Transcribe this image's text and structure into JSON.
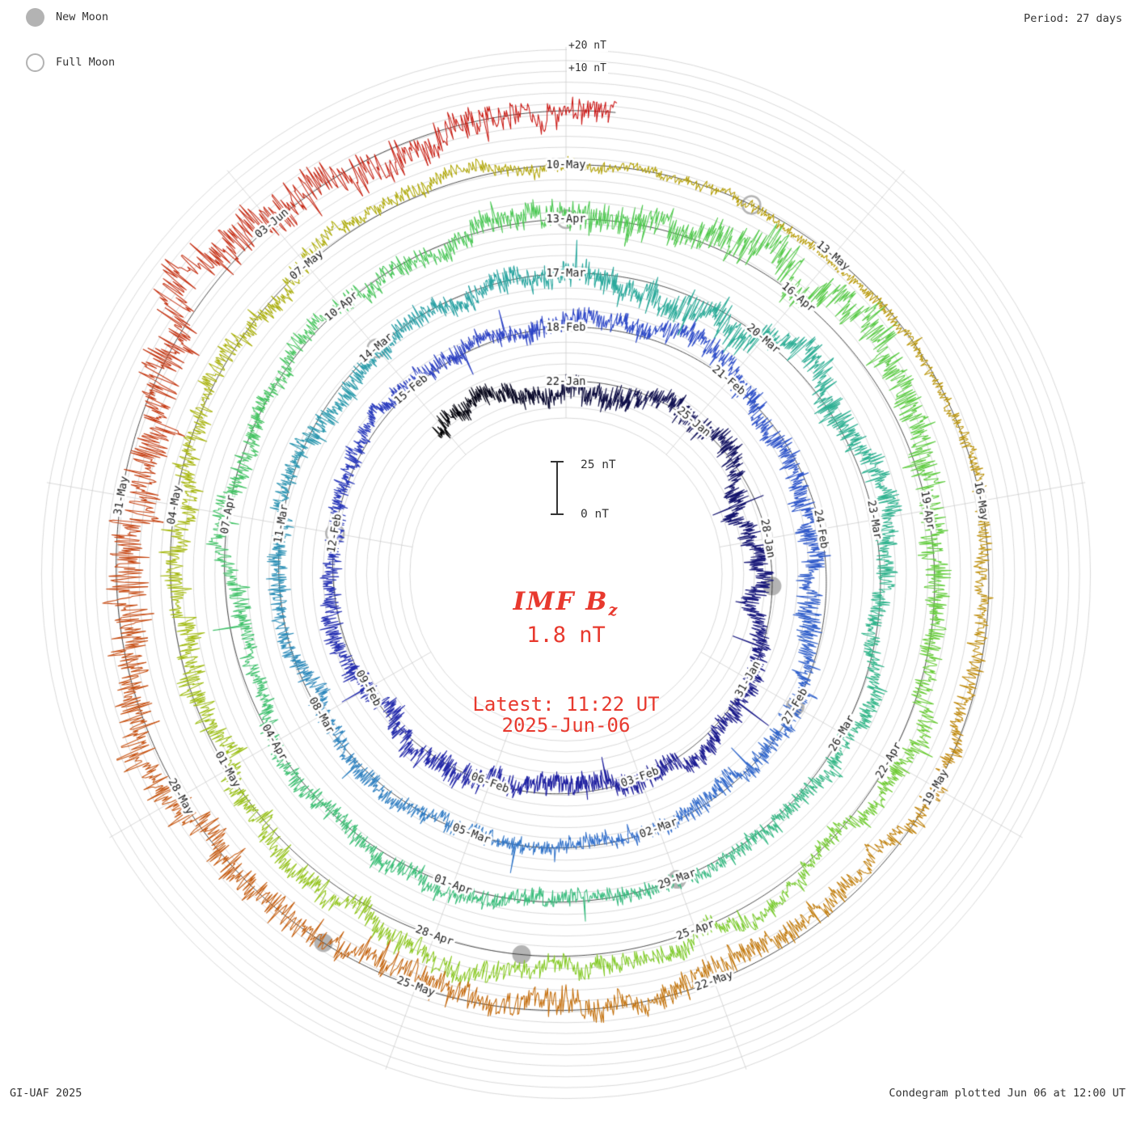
{
  "header": {
    "legend": {
      "new_moon": "New Moon",
      "full_moon": "Full Moon"
    },
    "period_label": "Period: 27 days"
  },
  "axis": {
    "plus20": "+20 nT",
    "plus10": "+10 nT"
  },
  "scalebar": {
    "top": "25 nT",
    "bottom": "0 nT"
  },
  "center": {
    "title_main": "IMF B",
    "title_sub": "z",
    "value": "1.8 nT",
    "latest_line1": "Latest: 11:22 UT",
    "latest_line2": "2025-Jun-06"
  },
  "footer": {
    "left": "GI-UAF 2025",
    "right": "Condegram plotted Jun 06 at 12:00 UT"
  },
  "colors": {
    "text": "#333333",
    "accent_red": "#e8392e",
    "moon": "#b3b3b3",
    "grid": "#cccccc",
    "baseline": "#1a1a1a"
  },
  "chart_data": {
    "type": "line",
    "style": "condegram-polar-spiral",
    "title": "IMF Bz",
    "unit": "nT",
    "period_days": 27,
    "latest_value_nT": 1.8,
    "latest_time": "11:22 UT",
    "latest_date": "2025-Jun-06",
    "plotted": "Jun 06 at 12:00 UT",
    "seed": 87654321,
    "day_range": [
      -3.2,
      135.47
    ],
    "rotation_start_dates": [
      "22-Jan",
      "18-Feb",
      "17-Mar",
      "13-Apr",
      "10-May"
    ],
    "label_step_days": 3,
    "scale": {
      "nT_per_ring_gap": 25,
      "grid_step_nT": 5,
      "scalebar_nT": 25,
      "top_axis_labels": [
        "+20 nT",
        "+10 nT"
      ]
    },
    "ring_labels": [
      {
        "d": 0,
        "label": "22-Jan"
      },
      {
        "d": 3,
        "label": "25-Jan"
      },
      {
        "d": 6,
        "label": "28-Jan"
      },
      {
        "d": 9,
        "label": "31-Jan"
      },
      {
        "d": 12,
        "label": "03-Feb"
      },
      {
        "d": 15,
        "label": "06-Feb"
      },
      {
        "d": 18,
        "label": "09-Feb"
      },
      {
        "d": 21,
        "label": "12-Feb"
      },
      {
        "d": 24,
        "label": "15-Feb"
      },
      {
        "d": 27,
        "label": "18-Feb"
      },
      {
        "d": 30,
        "label": "21-Feb"
      },
      {
        "d": 33,
        "label": "24-Feb"
      },
      {
        "d": 36,
        "label": "27-Feb"
      },
      {
        "d": 39,
        "label": "02-Mar"
      },
      {
        "d": 42,
        "label": "05-Mar"
      },
      {
        "d": 45,
        "label": "08-Mar"
      },
      {
        "d": 48,
        "label": "11-Mar"
      },
      {
        "d": 51,
        "label": "14-Mar"
      },
      {
        "d": 54,
        "label": "17-Mar"
      },
      {
        "d": 57,
        "label": "20-Mar"
      },
      {
        "d": 60,
        "label": "23-Mar"
      },
      {
        "d": 63,
        "label": "26-Mar"
      },
      {
        "d": 66,
        "label": "29-Mar"
      },
      {
        "d": 69,
        "label": "01-Apr"
      },
      {
        "d": 72,
        "label": "04-Apr"
      },
      {
        "d": 75,
        "label": "07-Apr"
      },
      {
        "d": 78,
        "label": "10-Apr"
      },
      {
        "d": 81,
        "label": "13-Apr"
      },
      {
        "d": 84,
        "label": "16-Apr"
      },
      {
        "d": 87,
        "label": "19-Apr"
      },
      {
        "d": 90,
        "label": "22-Apr"
      },
      {
        "d": 93,
        "label": "25-Apr"
      },
      {
        "d": 96,
        "label": "28-Apr"
      },
      {
        "d": 99,
        "label": "01-May"
      },
      {
        "d": 102,
        "label": "04-May"
      },
      {
        "d": 105,
        "label": "07-May"
      },
      {
        "d": 108,
        "label": "10-May"
      },
      {
        "d": 111,
        "label": "13-May"
      },
      {
        "d": 114,
        "label": "16-May"
      },
      {
        "d": 117,
        "label": "19-May"
      },
      {
        "d": 120,
        "label": "22-May"
      },
      {
        "d": 123,
        "label": "25-May"
      },
      {
        "d": 126,
        "label": "28-May"
      },
      {
        "d": 129,
        "label": "31-May"
      },
      {
        "d": 132,
        "label": "03-Jun"
      }
    ],
    "moons": {
      "new": [
        {
          "d": 7,
          "date": "29-Jan"
        },
        {
          "d": 36,
          "date": "27-Feb"
        },
        {
          "d": 66,
          "date": "29-Mar"
        },
        {
          "d": 95,
          "date": "27-Apr"
        },
        {
          "d": 124,
          "date": "26-May"
        }
      ],
      "full": [
        {
          "d": 21,
          "date": "12-Feb"
        },
        {
          "d": 51,
          "date": "14-Mar"
        },
        {
          "d": 81,
          "date": "13-Apr"
        },
        {
          "d": 110,
          "date": "12-May"
        }
      ]
    },
    "colormap": [
      {
        "d": -3.2,
        "c": "#000000"
      },
      {
        "d": 0,
        "c": "#0d0d3a"
      },
      {
        "d": 5,
        "c": "#15156e"
      },
      {
        "d": 13,
        "c": "#1f1fa0"
      },
      {
        "d": 27,
        "c": "#2e46c8"
      },
      {
        "d": 40,
        "c": "#3270cc"
      },
      {
        "d": 47,
        "c": "#2e90b8"
      },
      {
        "d": 54,
        "c": "#2aa89e"
      },
      {
        "d": 61,
        "c": "#30b48c"
      },
      {
        "d": 70,
        "c": "#3abe76"
      },
      {
        "d": 81,
        "c": "#4cc852"
      },
      {
        "d": 88,
        "c": "#63cc3a"
      },
      {
        "d": 95,
        "c": "#86c922"
      },
      {
        "d": 101,
        "c": "#a4ba10"
      },
      {
        "d": 108,
        "c": "#b2a304"
      },
      {
        "d": 115,
        "c": "#bd8c06"
      },
      {
        "d": 122,
        "c": "#c46c0c"
      },
      {
        "d": 128,
        "c": "#c64a12"
      },
      {
        "d": 132,
        "c": "#c52c16"
      },
      {
        "d": 135.5,
        "c": "#cb1212"
      }
    ],
    "activity_profile": [
      {
        "d": -3.2,
        "a": 1.1
      },
      {
        "d": 4,
        "a": 1.3
      },
      {
        "d": 10,
        "a": 1.0
      },
      {
        "d": 16,
        "a": 1.35
      },
      {
        "d": 22,
        "a": 0.9
      },
      {
        "d": 28,
        "a": 1.1
      },
      {
        "d": 34,
        "a": 1.3
      },
      {
        "d": 40,
        "a": 0.85
      },
      {
        "d": 46,
        "a": 1.0
      },
      {
        "d": 52,
        "a": 1.1
      },
      {
        "d": 57,
        "a": 1.9
      },
      {
        "d": 61,
        "a": 1.1
      },
      {
        "d": 66,
        "a": 0.9
      },
      {
        "d": 72,
        "a": 1.0
      },
      {
        "d": 78,
        "a": 0.9
      },
      {
        "d": 83.5,
        "a": 2.3
      },
      {
        "d": 87,
        "a": 1.4
      },
      {
        "d": 92,
        "a": 1.0
      },
      {
        "d": 98,
        "a": 1.4
      },
      {
        "d": 104,
        "a": 1.1
      },
      {
        "d": 109,
        "a": 0.55
      },
      {
        "d": 113,
        "a": 0.65
      },
      {
        "d": 118,
        "a": 1.1
      },
      {
        "d": 122,
        "a": 1.5
      },
      {
        "d": 126,
        "a": 1.9
      },
      {
        "d": 130,
        "a": 2.4
      },
      {
        "d": 133,
        "a": 2.2
      },
      {
        "d": 135.47,
        "a": 1.3
      }
    ]
  }
}
